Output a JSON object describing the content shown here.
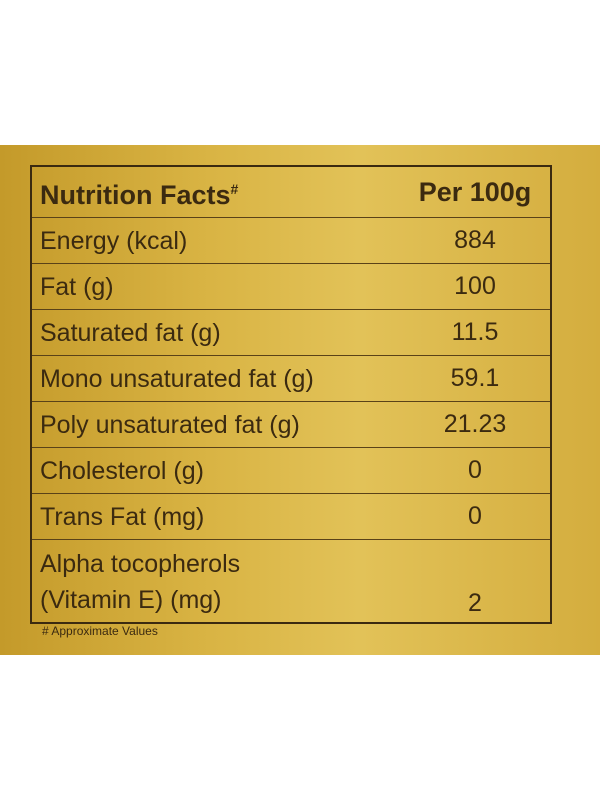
{
  "header": {
    "title": "Nutrition Facts",
    "mark": "#",
    "column": "Per 100g"
  },
  "table": {
    "rows": [
      [
        "Energy (kcal)",
        "884"
      ],
      [
        "Fat (g)",
        "100"
      ],
      [
        "Saturated fat (g)",
        "11.5"
      ],
      [
        "Mono unsaturated fat (g)",
        "59.1"
      ],
      [
        "Poly unsaturated fat (g)",
        "21.23"
      ],
      [
        "Cholesterol (g)",
        "0"
      ],
      [
        "Trans Fat (mg)",
        "0"
      ],
      [
        "Alpha tocopherols\n(Vitamin E) (mg)",
        "2"
      ]
    ]
  },
  "footnote": "# Approximate Values"
}
